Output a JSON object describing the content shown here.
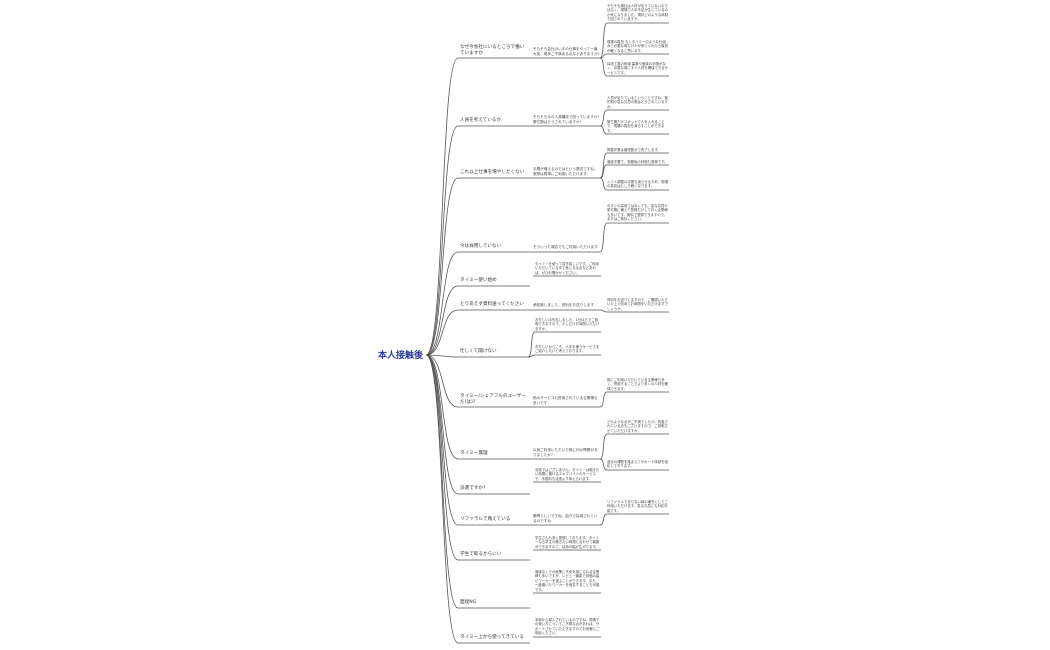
{
  "root": "本人接触後",
  "branches": [
    {
      "label": "なぜ今会社にいるところで働いていますか",
      "question": "そもそも会社のいまの仕事をやって一番大変、現状ご不満ある点などありますか?",
      "answers": [
        "そもそも御社は人材が足りていないのではなく、現場で人手不足が生じているのか気になりました。現状どのような体制で回されていますか。",
        "現場の負担 もしタイミーのような仕組みで必要な時だけ人が来てくれたら負担が軽くなると思います。",
        "採用工数の削減 募集や面接の手間がなく、必要な時にすぐ人材を確保できるサービスです。"
      ]
    },
    {
      "label": "人員を考えているか",
      "question": "そもそも今の人員構成で回っていますか?繁忙期はどうされていますか?",
      "answers": [
        "人員が足りているということですね。繁忙期や急な欠員の際はどうされていますか。",
        "繁忙期だけスポットで人を入れることで、現場の負担を減らすことができます。"
      ]
    },
    {
      "label": "これ以上仕事を増やしたくない",
      "question": "手間が増えるのではという懸念ですね。実際は簡単にご利用いただけます。",
      "answers": [
        "掲載作業は最短数分で完了します。",
        "面接不要で、勤務後の評価も簡単です。",
        "シフト調整の手間も減らせるため、現場の負担はむしろ軽くなります。"
      ]
    },
    {
      "label": "今は採用していない",
      "question": "そういった場合でもご利用いただけます",
      "answers": [
        "今すぐの採用ではなくても、急な欠員や繁忙期に備えて登録だけしておく企業様も多いです。無料で登録できますので、まずはご検討ください。"
      ]
    },
    {
      "label": "タイミー使い始め",
      "question": "",
      "answers": [
        "タイミーを使って頂き嬉しいです。ご利用いただいている中で気になる点などあれば、ぜひお聞かせください。"
      ]
    },
    {
      "label": "とりあえず資料送ってください",
      "question": "承知致しました。資料をお送りします",
      "answers": [
        "資料をお送りしますので、ご確認いただいた上で改めてお時間をいただけますでしょうか。"
      ]
    },
    {
      "label": "忙しくて聞けない",
      "question": "",
      "answers": [
        "お忙しい中失礼しました。1分ほどでご説明できますので、少しだけお時間いただけますか。",
        "お忙しいからこそ、人手を補うサービスをご紹介したいと考えております。"
      ]
    },
    {
      "label": "タイミー/シェアフルのユーザーだ(は)?",
      "question": "他のサービスも併用されている企業様も多いです",
      "answers": [
        "既にご利用いただいている企業様も多く、併用することでより多くの人材を確保できます。"
      ]
    },
    {
      "label": "タイミー無理",
      "question": "以前ご利用いただいた際に何か問題がありましたか?",
      "answers": [
        "どのような点がご不満でしたか。改善されている点もございますので、ご説明させていただけますか。",
        "過去の課題を踏まえてサポート体制を強化しております。"
      ]
    },
    {
      "label": "派遣ですか?",
      "question": "",
      "answers": [
        "派遣ではございません。タイミーは働きたい時間に働けるスキマバイトのサービスで、手数料も派遣より抑えられます。"
      ]
    },
    {
      "label": "リファラルで賄えている",
      "question": "素晴らしいですね。紹介で採用されているのですね",
      "answers": [
        "リファラルで足りない時の補完としてご利用いただけます。急な欠員にも対応可能です。"
      ]
    },
    {
      "label": "学生で取るからいい",
      "question": "",
      "answers": [
        "学生さんも多く登録しております。タイミーなら学生の働きたい時間に合わせて募集ができますので、採用の幅が広がります。"
      ]
    },
    {
      "label": "面接NG",
      "question": "",
      "answers": [
        "面接なしでの就業に不安を感じられる企業様も多いですが、レビュー機能で評価の高いワーカーを選ぶことができます。また、一度働いたワーカーを指名することも可能です。"
      ]
    },
    {
      "label": "タイミー上から使ってきている",
      "question": "",
      "answers": [
        "本部から導入されているのですね。現場での使い方についてご不明な点があれば、サポートさせていただきますのでお気軽にご相談ください。"
      ]
    }
  ]
}
